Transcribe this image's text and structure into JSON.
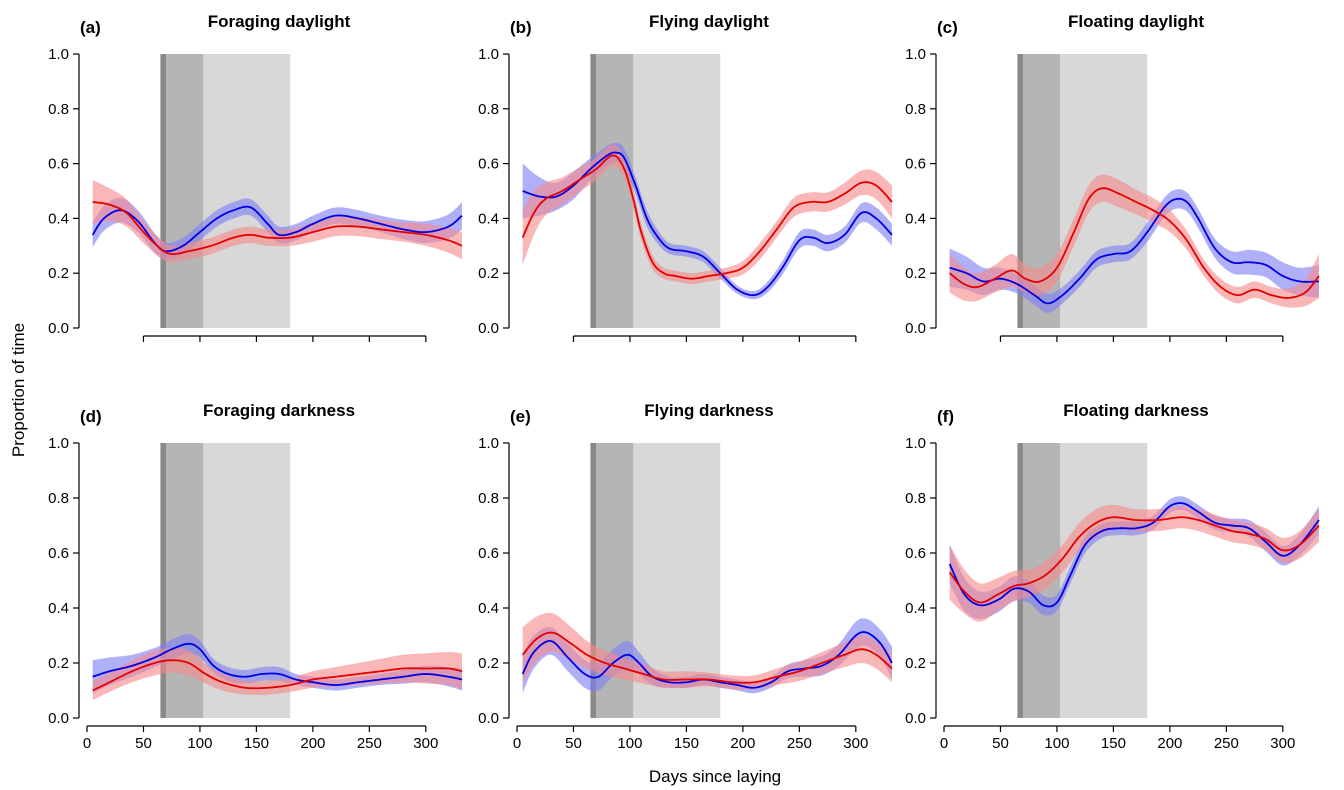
{
  "figure": {
    "ylabel": "Proportion of time",
    "xlabel": "Days since laying"
  },
  "colors": {
    "blue": "#0000e6",
    "blue_band": "#7f7ff5",
    "red": "#e60000",
    "red_band": "#f58a8a",
    "shade_dark": "#8a8a8a",
    "shade_mid": "#b5b5b5",
    "shade_light": "#d8d8d8"
  },
  "shaded_periods": [
    {
      "shade": "dark",
      "x": [
        65,
        70
      ]
    },
    {
      "shade": "mid",
      "x": [
        70,
        103
      ]
    },
    {
      "shade": "light",
      "x": [
        103,
        180
      ]
    }
  ],
  "chart_data": [
    {
      "type": "line",
      "letter": "(a)",
      "title": "Foraging daylight",
      "xlim": [
        0,
        340
      ],
      "ylim": [
        0,
        1
      ],
      "xticks": [
        50,
        100,
        150,
        200,
        250,
        300
      ],
      "yticks": [
        "0.0",
        "0.2",
        "0.4",
        "0.6",
        "0.8",
        "1.0"
      ],
      "series": [
        {
          "color": "blue",
          "x": [
            5,
            15,
            30,
            45,
            60,
            70,
            85,
            100,
            115,
            130,
            145,
            160,
            170,
            185,
            200,
            220,
            240,
            260,
            280,
            300,
            320,
            332
          ],
          "y": [
            0.34,
            0.4,
            0.43,
            0.39,
            0.31,
            0.28,
            0.3,
            0.35,
            0.4,
            0.43,
            0.44,
            0.38,
            0.34,
            0.35,
            0.38,
            0.41,
            0.4,
            0.38,
            0.36,
            0.35,
            0.37,
            0.41
          ],
          "band": [
            0.045,
            0.045,
            0.045,
            0.04,
            0.035,
            0.03,
            0.03,
            0.03,
            0.03,
            0.03,
            0.03,
            0.03,
            0.03,
            0.03,
            0.03,
            0.03,
            0.03,
            0.03,
            0.035,
            0.04,
            0.045,
            0.05
          ]
        },
        {
          "color": "red",
          "x": [
            5,
            20,
            35,
            50,
            65,
            75,
            90,
            110,
            130,
            145,
            160,
            180,
            200,
            220,
            240,
            260,
            280,
            300,
            320,
            332
          ],
          "y": [
            0.46,
            0.45,
            0.42,
            0.35,
            0.29,
            0.27,
            0.28,
            0.3,
            0.33,
            0.34,
            0.33,
            0.33,
            0.35,
            0.37,
            0.37,
            0.36,
            0.35,
            0.34,
            0.32,
            0.3
          ],
          "band": [
            0.08,
            0.06,
            0.05,
            0.04,
            0.035,
            0.03,
            0.03,
            0.03,
            0.03,
            0.03,
            0.03,
            0.03,
            0.035,
            0.035,
            0.035,
            0.035,
            0.035,
            0.04,
            0.045,
            0.05
          ]
        }
      ]
    },
    {
      "type": "line",
      "letter": "(b)",
      "title": "Flying daylight",
      "xlim": [
        0,
        340
      ],
      "ylim": [
        0,
        1
      ],
      "xticks": [
        50,
        100,
        150,
        200,
        250,
        300
      ],
      "yticks": [
        "0.0",
        "0.2",
        "0.4",
        "0.6",
        "0.8",
        "1.0"
      ],
      "series": [
        {
          "color": "blue",
          "x": [
            5,
            20,
            35,
            50,
            65,
            80,
            88,
            95,
            105,
            115,
            125,
            135,
            150,
            165,
            180,
            195,
            210,
            222,
            235,
            250,
            262,
            275,
            290,
            305,
            318,
            332
          ],
          "y": [
            0.5,
            0.48,
            0.48,
            0.52,
            0.58,
            0.63,
            0.64,
            0.62,
            0.52,
            0.4,
            0.33,
            0.29,
            0.28,
            0.26,
            0.2,
            0.14,
            0.12,
            0.15,
            0.22,
            0.32,
            0.33,
            0.31,
            0.34,
            0.42,
            0.4,
            0.34
          ],
          "band": [
            0.1,
            0.07,
            0.05,
            0.05,
            0.04,
            0.035,
            0.035,
            0.035,
            0.03,
            0.03,
            0.025,
            0.02,
            0.02,
            0.02,
            0.02,
            0.015,
            0.015,
            0.02,
            0.025,
            0.03,
            0.03,
            0.03,
            0.03,
            0.035,
            0.04,
            0.04
          ]
        },
        {
          "color": "red",
          "x": [
            5,
            15,
            25,
            40,
            55,
            70,
            85,
            95,
            103,
            110,
            120,
            130,
            140,
            155,
            170,
            185,
            200,
            215,
            230,
            245,
            260,
            275,
            290,
            305,
            318,
            332
          ],
          "y": [
            0.33,
            0.42,
            0.47,
            0.5,
            0.54,
            0.58,
            0.63,
            0.58,
            0.47,
            0.35,
            0.24,
            0.2,
            0.19,
            0.18,
            0.19,
            0.2,
            0.22,
            0.28,
            0.36,
            0.44,
            0.46,
            0.46,
            0.49,
            0.53,
            0.52,
            0.46
          ],
          "band": [
            0.1,
            0.08,
            0.06,
            0.05,
            0.045,
            0.04,
            0.04,
            0.035,
            0.03,
            0.03,
            0.025,
            0.02,
            0.02,
            0.02,
            0.02,
            0.02,
            0.025,
            0.03,
            0.03,
            0.035,
            0.035,
            0.035,
            0.04,
            0.045,
            0.05,
            0.06
          ]
        }
      ]
    },
    {
      "type": "line",
      "letter": "(c)",
      "title": "Floating daylight",
      "xlim": [
        0,
        340
      ],
      "ylim": [
        0,
        1
      ],
      "xticks": [
        50,
        100,
        150,
        200,
        250,
        300
      ],
      "yticks": [
        "0.0",
        "0.2",
        "0.4",
        "0.6",
        "0.8",
        "1.0"
      ],
      "series": [
        {
          "color": "blue",
          "x": [
            5,
            20,
            35,
            50,
            65,
            80,
            92,
            105,
            120,
            135,
            150,
            165,
            180,
            195,
            205,
            215,
            225,
            240,
            255,
            270,
            285,
            300,
            315,
            332
          ],
          "y": [
            0.22,
            0.2,
            0.17,
            0.18,
            0.16,
            0.12,
            0.09,
            0.12,
            0.18,
            0.25,
            0.27,
            0.28,
            0.35,
            0.44,
            0.47,
            0.46,
            0.4,
            0.29,
            0.24,
            0.24,
            0.23,
            0.19,
            0.17,
            0.17
          ],
          "band": [
            0.07,
            0.06,
            0.05,
            0.04,
            0.035,
            0.035,
            0.035,
            0.03,
            0.03,
            0.03,
            0.03,
            0.03,
            0.035,
            0.035,
            0.035,
            0.035,
            0.035,
            0.035,
            0.04,
            0.045,
            0.045,
            0.05,
            0.05,
            0.06
          ]
        },
        {
          "color": "red",
          "x": [
            5,
            18,
            30,
            45,
            60,
            72,
            85,
            100,
            115,
            128,
            140,
            155,
            170,
            185,
            200,
            215,
            230,
            245,
            260,
            275,
            290,
            305,
            320,
            332
          ],
          "y": [
            0.2,
            0.16,
            0.15,
            0.18,
            0.21,
            0.18,
            0.17,
            0.22,
            0.35,
            0.47,
            0.51,
            0.49,
            0.46,
            0.43,
            0.39,
            0.32,
            0.22,
            0.15,
            0.12,
            0.14,
            0.12,
            0.11,
            0.13,
            0.19
          ],
          "band": [
            0.07,
            0.06,
            0.05,
            0.05,
            0.06,
            0.05,
            0.05,
            0.05,
            0.05,
            0.05,
            0.05,
            0.05,
            0.045,
            0.045,
            0.04,
            0.035,
            0.03,
            0.03,
            0.03,
            0.03,
            0.03,
            0.035,
            0.05,
            0.08
          ]
        }
      ]
    },
    {
      "type": "line",
      "letter": "(d)",
      "title": "Foraging darkness",
      "xlim": [
        0,
        340
      ],
      "ylim": [
        0,
        1
      ],
      "xticks": [
        0,
        50,
        100,
        150,
        200,
        250,
        300
      ],
      "xticklabels": [
        "0",
        "50",
        "100",
        "150",
        "200",
        "250",
        "300"
      ],
      "yticks": [
        "0.0",
        "0.2",
        "0.4",
        "0.6",
        "0.8",
        "1.0"
      ],
      "series": [
        {
          "color": "blue",
          "x": [
            5,
            20,
            40,
            60,
            75,
            90,
            100,
            112,
            125,
            140,
            155,
            170,
            185,
            200,
            220,
            240,
            260,
            280,
            300,
            320,
            332
          ],
          "y": [
            0.15,
            0.17,
            0.19,
            0.22,
            0.25,
            0.27,
            0.25,
            0.19,
            0.16,
            0.15,
            0.16,
            0.16,
            0.14,
            0.13,
            0.12,
            0.13,
            0.14,
            0.15,
            0.16,
            0.15,
            0.14
          ],
          "band": [
            0.06,
            0.05,
            0.04,
            0.035,
            0.035,
            0.035,
            0.03,
            0.025,
            0.025,
            0.025,
            0.025,
            0.025,
            0.02,
            0.02,
            0.02,
            0.02,
            0.02,
            0.025,
            0.03,
            0.035,
            0.04
          ]
        },
        {
          "color": "red",
          "x": [
            5,
            20,
            40,
            60,
            75,
            90,
            105,
            120,
            140,
            160,
            180,
            200,
            220,
            240,
            260,
            280,
            300,
            320,
            332
          ],
          "y": [
            0.1,
            0.13,
            0.17,
            0.2,
            0.21,
            0.2,
            0.16,
            0.13,
            0.11,
            0.11,
            0.12,
            0.14,
            0.15,
            0.16,
            0.17,
            0.18,
            0.18,
            0.18,
            0.17
          ],
          "band": [
            0.035,
            0.035,
            0.04,
            0.045,
            0.045,
            0.045,
            0.035,
            0.03,
            0.025,
            0.025,
            0.025,
            0.03,
            0.035,
            0.04,
            0.045,
            0.05,
            0.055,
            0.06,
            0.065
          ]
        }
      ]
    },
    {
      "type": "line",
      "letter": "(e)",
      "title": "Flying darkness",
      "xlim": [
        0,
        340
      ],
      "ylim": [
        0,
        1
      ],
      "xticks": [
        0,
        50,
        100,
        150,
        200,
        250,
        300
      ],
      "xticklabels": [
        "0",
        "50",
        "100",
        "150",
        "200",
        "250",
        "300"
      ],
      "yticks": [
        "0.0",
        "0.2",
        "0.4",
        "0.6",
        "0.8",
        "1.0"
      ],
      "series": [
        {
          "color": "blue",
          "x": [
            5,
            15,
            30,
            45,
            60,
            72,
            85,
            98,
            108,
            120,
            135,
            150,
            165,
            180,
            195,
            210,
            225,
            240,
            255,
            270,
            285,
            300,
            310,
            322,
            332
          ],
          "y": [
            0.16,
            0.24,
            0.28,
            0.22,
            0.16,
            0.15,
            0.2,
            0.23,
            0.2,
            0.15,
            0.13,
            0.13,
            0.14,
            0.13,
            0.12,
            0.11,
            0.13,
            0.17,
            0.18,
            0.19,
            0.23,
            0.3,
            0.31,
            0.27,
            0.2
          ],
          "band": [
            0.07,
            0.06,
            0.05,
            0.05,
            0.05,
            0.05,
            0.05,
            0.05,
            0.04,
            0.03,
            0.02,
            0.02,
            0.02,
            0.02,
            0.02,
            0.02,
            0.02,
            0.025,
            0.03,
            0.035,
            0.04,
            0.05,
            0.05,
            0.05,
            0.06
          ]
        },
        {
          "color": "red",
          "x": [
            5,
            18,
            32,
            48,
            62,
            78,
            95,
            112,
            130,
            150,
            170,
            190,
            210,
            230,
            250,
            270,
            290,
            305,
            318,
            332
          ],
          "y": [
            0.23,
            0.29,
            0.31,
            0.27,
            0.23,
            0.2,
            0.18,
            0.16,
            0.14,
            0.14,
            0.14,
            0.13,
            0.13,
            0.15,
            0.17,
            0.2,
            0.23,
            0.25,
            0.23,
            0.18
          ],
          "band": [
            0.1,
            0.08,
            0.07,
            0.06,
            0.05,
            0.045,
            0.04,
            0.035,
            0.03,
            0.03,
            0.025,
            0.025,
            0.025,
            0.03,
            0.035,
            0.04,
            0.045,
            0.05,
            0.05,
            0.05
          ]
        }
      ]
    },
    {
      "type": "line",
      "letter": "(f)",
      "title": "Floating darkness",
      "xlim": [
        0,
        340
      ],
      "ylim": [
        0,
        1
      ],
      "xticks": [
        0,
        50,
        100,
        150,
        200,
        250,
        300
      ],
      "xticklabels": [
        "0",
        "50",
        "100",
        "150",
        "200",
        "250",
        "300"
      ],
      "yticks": [
        "0.0",
        "0.2",
        "0.4",
        "0.6",
        "0.8",
        "1.0"
      ],
      "series": [
        {
          "color": "blue",
          "x": [
            5,
            18,
            32,
            48,
            62,
            75,
            88,
            100,
            112,
            125,
            140,
            155,
            170,
            185,
            200,
            212,
            225,
            240,
            255,
            270,
            285,
            300,
            315,
            332
          ],
          "y": [
            0.56,
            0.45,
            0.41,
            0.43,
            0.47,
            0.46,
            0.41,
            0.42,
            0.52,
            0.63,
            0.68,
            0.69,
            0.69,
            0.71,
            0.77,
            0.78,
            0.75,
            0.71,
            0.7,
            0.69,
            0.64,
            0.59,
            0.63,
            0.72
          ],
          "band": [
            0.07,
            0.06,
            0.05,
            0.045,
            0.045,
            0.04,
            0.035,
            0.03,
            0.03,
            0.03,
            0.025,
            0.025,
            0.025,
            0.025,
            0.025,
            0.025,
            0.025,
            0.025,
            0.025,
            0.03,
            0.035,
            0.035,
            0.04,
            0.05
          ]
        },
        {
          "color": "red",
          "x": [
            5,
            18,
            32,
            48,
            62,
            75,
            90,
            105,
            120,
            135,
            150,
            170,
            190,
            210,
            225,
            240,
            255,
            270,
            285,
            300,
            315,
            332
          ],
          "y": [
            0.53,
            0.46,
            0.42,
            0.45,
            0.48,
            0.49,
            0.52,
            0.58,
            0.66,
            0.71,
            0.73,
            0.72,
            0.72,
            0.73,
            0.72,
            0.7,
            0.68,
            0.67,
            0.65,
            0.61,
            0.63,
            0.7
          ],
          "band": [
            0.1,
            0.08,
            0.07,
            0.06,
            0.055,
            0.05,
            0.05,
            0.05,
            0.05,
            0.05,
            0.045,
            0.04,
            0.04,
            0.04,
            0.04,
            0.04,
            0.04,
            0.04,
            0.04,
            0.045,
            0.05,
            0.06
          ]
        }
      ]
    }
  ]
}
